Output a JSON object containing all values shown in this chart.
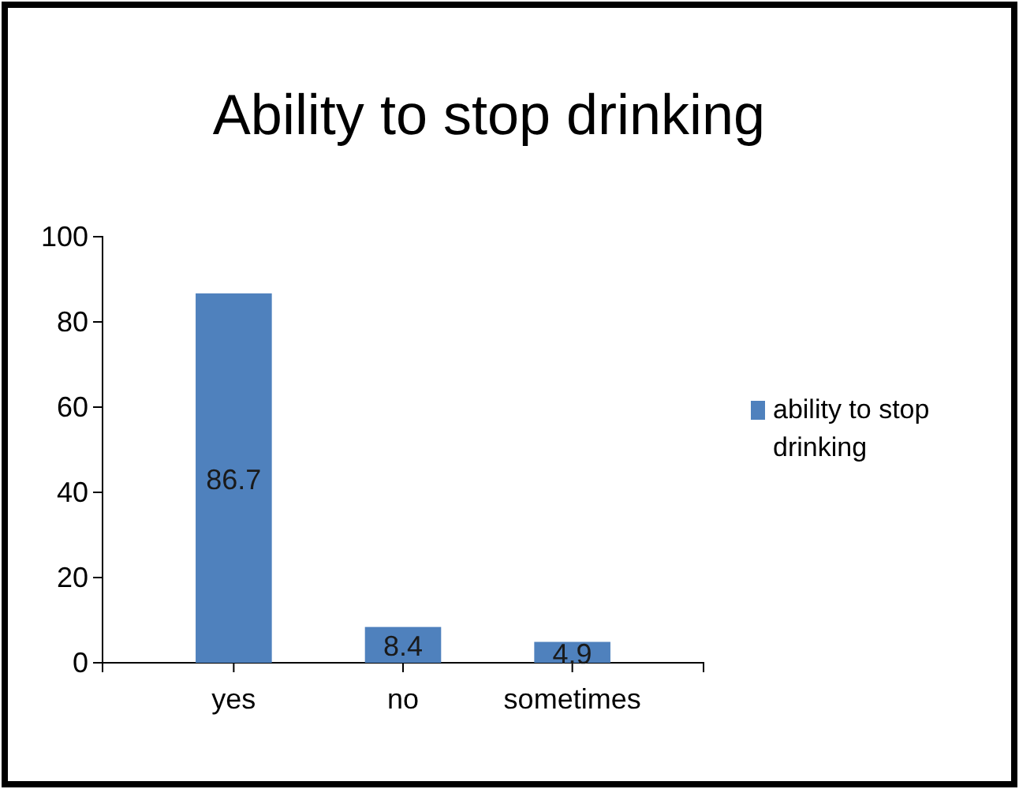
{
  "chart_data": {
    "type": "bar",
    "title": "Ability to stop drinking",
    "categories": [
      "yes",
      "no",
      "sometimes"
    ],
    "series": [
      {
        "name": "ability to stop drinking",
        "color": "#4f81bd",
        "values": [
          86.7,
          8.4,
          4.9
        ]
      }
    ],
    "ylim": [
      0,
      100
    ],
    "yticks": [
      0,
      20,
      40,
      60,
      80,
      100
    ],
    "grid": false,
    "legend": "right",
    "data_labels": true
  }
}
